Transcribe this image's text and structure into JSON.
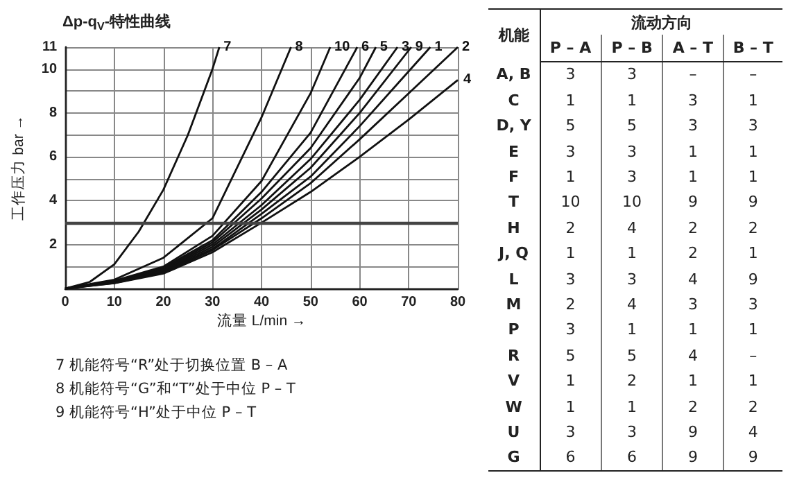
{
  "chart_data": [
    {
      "type": "line",
      "title": "Δp-q$_{V}$-特性曲线",
      "xlabel": "流量 L/min →",
      "ylabel": "工作压力 bar →",
      "xlim": [
        0,
        80
      ],
      "ylim": [
        0,
        11
      ],
      "xticks": [
        0,
        10,
        20,
        30,
        40,
        50,
        60,
        70,
        80
      ],
      "yticks": [
        {
          "value": 1,
          "label": null
        },
        2,
        {
          "value": 3,
          "label": null
        },
        4,
        {
          "value": 5,
          "label": null
        },
        6,
        {
          "value": 7,
          "label": null
        },
        8,
        {
          "value": 9,
          "label": null
        },
        10,
        11
      ],
      "grid": true,
      "legend": false,
      "marker": "none",
      "line_style": "solid",
      "ref_lines": [
        {
          "axis": "y",
          "value": 3,
          "label": null
        }
      ],
      "series": [
        {
          "name": "7",
          "color": "#111111",
          "x": [
            0,
            5,
            10,
            15,
            20,
            25,
            30,
            31.4
          ],
          "values": [
            0,
            0.3,
            1.1,
            2.6,
            4.5,
            7,
            10,
            11
          ]
        },
        {
          "name": "8",
          "color": "#111111",
          "x": [
            0,
            10,
            20,
            30,
            40,
            46
          ],
          "values": [
            0,
            0.4,
            1.4,
            3.2,
            7.8,
            11
          ]
        },
        {
          "name": "10",
          "color": "#111111",
          "x": [
            0,
            10,
            20,
            30,
            40,
            50,
            54
          ],
          "values": [
            0,
            0.35,
            1,
            2.4,
            4.9,
            8.9,
            11
          ]
        },
        {
          "name": "6",
          "color": "#111111",
          "x": [
            0,
            10,
            20,
            30,
            40,
            50,
            59.5
          ],
          "values": [
            0,
            0.33,
            0.95,
            2.2,
            4.4,
            7.1,
            11
          ]
        },
        {
          "name": "5",
          "color": "#111111",
          "x": [
            0,
            10,
            20,
            30,
            40,
            50,
            60,
            63.3
          ],
          "values": [
            0,
            0.32,
            0.9,
            2.1,
            4.1,
            6.4,
            9.6,
            11
          ]
        },
        {
          "name": "3",
          "color": "#111111",
          "x": [
            0,
            10,
            20,
            30,
            40,
            50,
            60,
            67.7
          ],
          "values": [
            0,
            0.3,
            0.85,
            2,
            3.8,
            5.9,
            8.6,
            11
          ]
        },
        {
          "name": "9",
          "color": "#111111",
          "x": [
            0,
            10,
            20,
            30,
            40,
            50,
            60,
            70.5
          ],
          "values": [
            0,
            0.28,
            0.8,
            1.9,
            3.6,
            5.5,
            8,
            11
          ]
        },
        {
          "name": "1",
          "color": "#111111",
          "x": [
            0,
            10,
            20,
            30,
            40,
            50,
            60,
            70,
            74.4
          ],
          "values": [
            0,
            0.27,
            0.75,
            1.8,
            3.4,
            5.1,
            7.4,
            9.9,
            11
          ]
        },
        {
          "name": "2",
          "color": "#111111",
          "x": [
            0,
            10,
            20,
            30,
            40,
            50,
            60,
            70,
            80
          ],
          "values": [
            0,
            0.25,
            0.72,
            1.75,
            3.2,
            4.8,
            6.8,
            8.9,
            11
          ]
        },
        {
          "name": "4",
          "color": "#111111",
          "x": [
            0,
            10,
            20,
            30,
            40,
            50,
            60,
            70,
            80
          ],
          "values": [
            0,
            0.24,
            0.68,
            1.65,
            3,
            4.4,
            6,
            7.7,
            9.5
          ]
        }
      ],
      "annotations": [
        "7 机能符号“R”处于切换位置 B – A",
        "8 机能符号“G”和“T”处于中位 P – T",
        "9 机能符号“H”处于中位 P – T"
      ]
    },
    {
      "type": "other",
      "xlabel": "流动方向",
      "ylabel": "机能",
      "categories": [
        "P – A",
        "P – B",
        "A – T",
        "B – T"
      ],
      "y_categories": [
        "A, B",
        "C",
        "D, Y",
        "E",
        "F",
        "T",
        "H",
        "J, Q",
        "L",
        "M",
        "P",
        "R",
        "V",
        "W",
        "U",
        "G"
      ],
      "cell_labels": [
        [
          "3",
          "3",
          "–",
          "–"
        ],
        [
          "1",
          "1",
          "3",
          "1"
        ],
        [
          "5",
          "5",
          "3",
          "3"
        ],
        [
          "3",
          "3",
          "1",
          "1"
        ],
        [
          "1",
          "3",
          "1",
          "1"
        ],
        [
          "10",
          "10",
          "9",
          "9"
        ],
        [
          "2",
          "4",
          "2",
          "2"
        ],
        [
          "1",
          "1",
          "2",
          "1"
        ],
        [
          "3",
          "3",
          "4",
          "9"
        ],
        [
          "2",
          "4",
          "3",
          "3"
        ],
        [
          "3",
          "1",
          "1",
          "1"
        ],
        [
          "5",
          "5",
          "4",
          "–"
        ],
        [
          "1",
          "2",
          "1",
          "1"
        ],
        [
          "1",
          "1",
          "2",
          "2"
        ],
        [
          "3",
          "3",
          "9",
          "4"
        ],
        [
          "6",
          "6",
          "9",
          "9"
        ]
      ]
    }
  ]
}
